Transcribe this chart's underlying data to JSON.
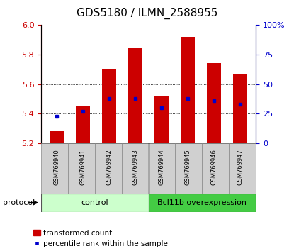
{
  "title": "GDS5180 / ILMN_2588955",
  "samples": [
    "GSM769940",
    "GSM769941",
    "GSM769942",
    "GSM769943",
    "GSM769944",
    "GSM769945",
    "GSM769946",
    "GSM769947"
  ],
  "transformed_counts": [
    5.28,
    5.45,
    5.7,
    5.85,
    5.52,
    5.92,
    5.74,
    5.67
  ],
  "percentile_ranks": [
    23,
    27,
    38,
    38,
    30,
    38,
    36,
    33
  ],
  "y_min": 5.2,
  "y_max": 6.0,
  "y_ticks": [
    5.2,
    5.4,
    5.6,
    5.8,
    6.0
  ],
  "right_y_ticks": [
    0,
    25,
    50,
    75,
    100
  ],
  "bar_color": "#cc0000",
  "dot_color": "#0000cc",
  "bar_width": 0.55,
  "control_color": "#ccffcc",
  "overexp_color": "#44cc44",
  "protocol_label": "protocol",
  "legend_bar_label": "transformed count",
  "legend_dot_label": "percentile rank within the sample",
  "left_axis_color": "#cc0000",
  "right_axis_color": "#0000cc",
  "title_fontsize": 11,
  "tick_fontsize": 8,
  "sample_fontsize": 6,
  "label_fontsize": 8
}
